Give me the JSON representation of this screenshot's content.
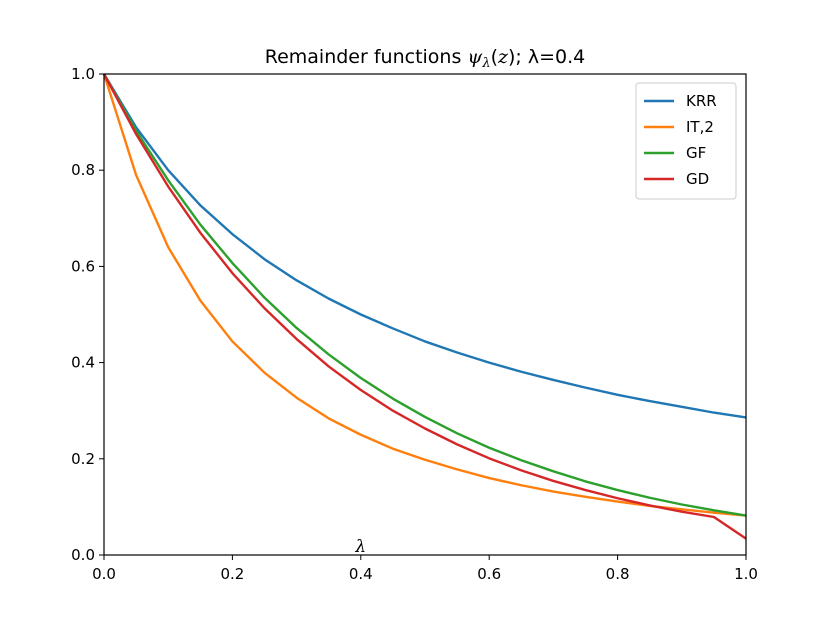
{
  "chart_data": {
    "type": "line",
    "title": "Remainder functions ψλ(z); λ=0.4",
    "title_parts": {
      "prefix": "Remainder functions ",
      "psi": "ψ",
      "sub": "λ",
      "open": "(",
      "z": "z",
      "close": ")",
      "suffix": "; λ=0.4"
    },
    "xlabel": "",
    "ylabel": "",
    "xlim": [
      0,
      1
    ],
    "ylim": [
      0,
      1
    ],
    "x_ticks": [
      "0.0",
      "0.2",
      "0.4",
      "0.6",
      "0.8",
      "1.0"
    ],
    "y_ticks": [
      "0.0",
      "0.2",
      "0.4",
      "0.6",
      "0.8",
      "1.0"
    ],
    "annotation": {
      "text": "λ",
      "x": 0.4,
      "y": 0.0
    },
    "grid": false,
    "legend_position": "top-right",
    "series": [
      {
        "name": "KRR",
        "color": "#1f77b4",
        "x": [
          0,
          0.05,
          0.1,
          0.15,
          0.2,
          0.25,
          0.3,
          0.35,
          0.4,
          0.45,
          0.5,
          0.55,
          0.6,
          0.65,
          0.7,
          0.75,
          0.8,
          0.85,
          0.9,
          0.95,
          1.0
        ],
        "y": [
          1.0,
          0.889,
          0.8,
          0.727,
          0.667,
          0.615,
          0.571,
          0.533,
          0.5,
          0.471,
          0.444,
          0.421,
          0.4,
          0.381,
          0.364,
          0.348,
          0.333,
          0.32,
          0.308,
          0.296,
          0.286
        ]
      },
      {
        "name": "IT,2",
        "color": "#ff7f0e",
        "x": [
          0,
          0.05,
          0.1,
          0.15,
          0.2,
          0.25,
          0.3,
          0.35,
          0.4,
          0.45,
          0.5,
          0.55,
          0.6,
          0.65,
          0.7,
          0.75,
          0.8,
          0.85,
          0.9,
          0.95,
          1.0
        ],
        "y": [
          1.0,
          0.79,
          0.64,
          0.529,
          0.444,
          0.379,
          0.327,
          0.284,
          0.25,
          0.221,
          0.198,
          0.178,
          0.16,
          0.145,
          0.132,
          0.121,
          0.111,
          0.102,
          0.095,
          0.088,
          0.082
        ]
      },
      {
        "name": "GF",
        "color": "#2ca02c",
        "x": [
          0,
          0.05,
          0.1,
          0.15,
          0.2,
          0.25,
          0.3,
          0.35,
          0.4,
          0.45,
          0.5,
          0.55,
          0.6,
          0.65,
          0.7,
          0.75,
          0.8,
          0.85,
          0.9,
          0.95,
          1.0
        ],
        "y": [
          1.0,
          0.882,
          0.779,
          0.687,
          0.607,
          0.535,
          0.472,
          0.417,
          0.368,
          0.325,
          0.287,
          0.253,
          0.223,
          0.197,
          0.174,
          0.153,
          0.135,
          0.119,
          0.105,
          0.093,
          0.082
        ]
      },
      {
        "name": "GD",
        "color": "#d62728",
        "x": [
          0,
          0.05,
          0.1,
          0.15,
          0.2,
          0.25,
          0.3,
          0.35,
          0.4,
          0.45,
          0.5,
          0.55,
          0.6,
          0.65,
          0.7,
          0.75,
          0.8,
          0.85,
          0.9,
          0.95,
          1.0
        ],
        "y": [
          1.0,
          0.875,
          0.766,
          0.67,
          0.586,
          0.513,
          0.449,
          0.392,
          0.343,
          0.3,
          0.263,
          0.23,
          0.201,
          0.176,
          0.154,
          0.135,
          0.118,
          0.103,
          0.09,
          0.079,
          0.034
        ]
      }
    ]
  }
}
